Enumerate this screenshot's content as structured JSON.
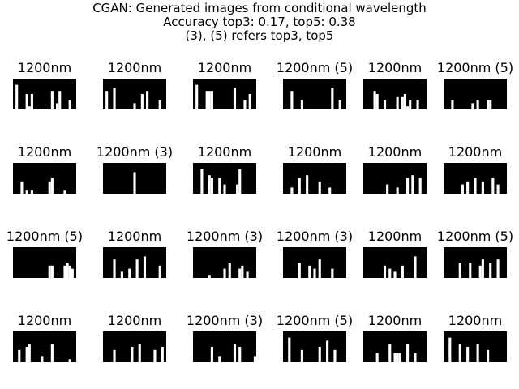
{
  "title": {
    "line1": "CGAN: Generated images from conditional wavelength",
    "line2": "Accuracy top3: 0.17, top5: 0.38",
    "line3": "(3), (5) refers top3, top5"
  },
  "grid": {
    "rows": 4,
    "cols": 6,
    "panels": [
      {
        "label": "1200nm",
        "bars": [
          0,
          8,
          0,
          0,
          0,
          5,
          1,
          5,
          0,
          0,
          0,
          0,
          0,
          0,
          0,
          6,
          0,
          2,
          6,
          0,
          0,
          0,
          3,
          0,
          0
        ]
      },
      {
        "label": "1200nm",
        "bars": [
          0,
          6,
          0,
          0,
          7,
          0,
          0,
          0,
          0,
          0,
          0,
          0,
          2,
          0,
          0,
          5,
          0,
          6,
          0,
          0,
          0,
          0,
          3,
          0,
          0
        ]
      },
      {
        "label": "1200nm",
        "bars": [
          0,
          8,
          0,
          0,
          0,
          6,
          6,
          6,
          0,
          0,
          0,
          0,
          0,
          0,
          0,
          0,
          7,
          0,
          0,
          0,
          3,
          0,
          5,
          0,
          0
        ]
      },
      {
        "label": "1200nm (5)",
        "bars": [
          0,
          0,
          0,
          6,
          0,
          0,
          0,
          3,
          0,
          0,
          0,
          0,
          0,
          0,
          0,
          0,
          0,
          0,
          0,
          7,
          0,
          0,
          3,
          0,
          0
        ]
      },
      {
        "label": "1200nm",
        "bars": [
          0,
          0,
          0,
          0,
          6,
          5,
          0,
          0,
          3,
          0,
          0,
          0,
          0,
          4,
          0,
          4,
          5,
          1,
          3,
          0,
          0,
          3,
          0,
          0,
          0
        ]
      },
      {
        "label": "1200nm (5)",
        "bars": [
          0,
          0,
          0,
          3,
          0,
          0,
          0,
          0,
          0,
          0,
          0,
          2,
          0,
          3,
          0,
          0,
          0,
          3,
          3,
          0,
          0,
          0,
          0,
          0,
          0
        ]
      },
      {
        "label": "1200nm",
        "bars": [
          0,
          0,
          0,
          4,
          0,
          1,
          0,
          1,
          0,
          0,
          0,
          0,
          0,
          0,
          4,
          5,
          0,
          0,
          0,
          0,
          1,
          0,
          0,
          0,
          0
        ]
      },
      {
        "label": "1200nm (3)",
        "bars": [
          0,
          0,
          0,
          0,
          0,
          0,
          0,
          0,
          0,
          0,
          0,
          0,
          7,
          0,
          0,
          0,
          0,
          0,
          0,
          0,
          0,
          0,
          0,
          0,
          0
        ]
      },
      {
        "label": "1200nm",
        "bars": [
          0,
          0,
          0,
          8,
          0,
          0,
          6,
          5,
          0,
          0,
          5,
          0,
          3,
          0,
          0,
          0,
          0,
          3,
          8,
          0,
          0,
          0,
          0,
          0,
          0
        ]
      },
      {
        "label": "1200nm",
        "bars": [
          0,
          0,
          0,
          2,
          0,
          0,
          5,
          0,
          0,
          6,
          0,
          0,
          0,
          0,
          4,
          0,
          0,
          0,
          2,
          0,
          0,
          0,
          0,
          0,
          0
        ]
      },
      {
        "label": "1200nm",
        "bars": [
          0,
          0,
          0,
          0,
          0,
          0,
          0,
          0,
          0,
          3,
          0,
          0,
          0,
          2,
          0,
          0,
          0,
          5,
          0,
          6,
          0,
          0,
          5,
          0,
          0
        ]
      },
      {
        "label": "1200nm",
        "bars": [
          0,
          0,
          0,
          0,
          0,
          0,
          0,
          3,
          0,
          4,
          0,
          0,
          5,
          0,
          0,
          4,
          0,
          0,
          0,
          5,
          0,
          3,
          0,
          0,
          0
        ]
      },
      {
        "label": "1200nm (5)",
        "bars": [
          0,
          0,
          0,
          0,
          0,
          0,
          0,
          0,
          0,
          0,
          0,
          0,
          0,
          0,
          4,
          4,
          0,
          0,
          0,
          0,
          4,
          5,
          4,
          3,
          0
        ]
      },
      {
        "label": "1200nm",
        "bars": [
          0,
          0,
          0,
          0,
          6,
          0,
          0,
          2,
          0,
          0,
          3,
          0,
          0,
          6,
          0,
          0,
          7,
          0,
          0,
          0,
          0,
          0,
          4,
          0,
          0
        ]
      },
      {
        "label": "1200nm (3)",
        "bars": [
          0,
          0,
          0,
          0,
          0,
          0,
          1,
          0,
          0,
          0,
          0,
          0,
          3,
          0,
          5,
          0,
          0,
          0,
          3,
          4,
          0,
          2,
          0,
          0,
          0
        ]
      },
      {
        "label": "1200nm (3)",
        "bars": [
          0,
          0,
          0,
          0,
          0,
          0,
          5,
          0,
          0,
          0,
          4,
          0,
          3,
          0,
          6,
          0,
          0,
          0,
          0,
          3,
          0,
          0,
          0,
          0,
          0
        ]
      },
      {
        "label": "1200nm",
        "bars": [
          0,
          0,
          0,
          0,
          0,
          0,
          0,
          0,
          4,
          0,
          3,
          0,
          2,
          0,
          0,
          4,
          0,
          0,
          0,
          0,
          7,
          0,
          0,
          0,
          0
        ]
      },
      {
        "label": "1200nm (5)",
        "bars": [
          0,
          0,
          0,
          0,
          0,
          0,
          5,
          0,
          0,
          0,
          5,
          0,
          0,
          0,
          4,
          6,
          0,
          0,
          5,
          0,
          0,
          6,
          0,
          0,
          0
        ]
      },
      {
        "label": "1200nm",
        "bars": [
          0,
          0,
          4,
          0,
          0,
          5,
          6,
          0,
          0,
          0,
          0,
          2,
          0,
          0,
          0,
          6,
          0,
          0,
          0,
          0,
          0,
          0,
          1,
          0,
          0
        ]
      },
      {
        "label": "1200nm",
        "bars": [
          0,
          0,
          0,
          0,
          4,
          0,
          0,
          0,
          0,
          0,
          0,
          5,
          0,
          0,
          6,
          0,
          0,
          0,
          0,
          0,
          4,
          0,
          0,
          5,
          0
        ]
      },
      {
        "label": "1200nm (3)",
        "bars": [
          0,
          0,
          0,
          0,
          0,
          0,
          0,
          5,
          0,
          0,
          2,
          0,
          0,
          0,
          0,
          0,
          6,
          0,
          5,
          0,
          0,
          0,
          0,
          0,
          2
        ]
      },
      {
        "label": "1200nm (5)",
        "bars": [
          0,
          0,
          8,
          0,
          0,
          0,
          0,
          4,
          0,
          0,
          0,
          0,
          0,
          0,
          5,
          0,
          0,
          7,
          0,
          0,
          4,
          0,
          0,
          0,
          0
        ]
      },
      {
        "label": "1200nm",
        "bars": [
          0,
          0,
          0,
          0,
          0,
          3,
          0,
          0,
          0,
          0,
          6,
          0,
          3,
          3,
          3,
          0,
          0,
          6,
          0,
          0,
          3,
          0,
          0,
          0,
          0
        ]
      },
      {
        "label": "1200nm",
        "bars": [
          0,
          0,
          8,
          0,
          0,
          0,
          6,
          0,
          0,
          5,
          0,
          0,
          0,
          6,
          0,
          0,
          0,
          4,
          0,
          0,
          0,
          0,
          0,
          0,
          0
        ]
      }
    ]
  }
}
